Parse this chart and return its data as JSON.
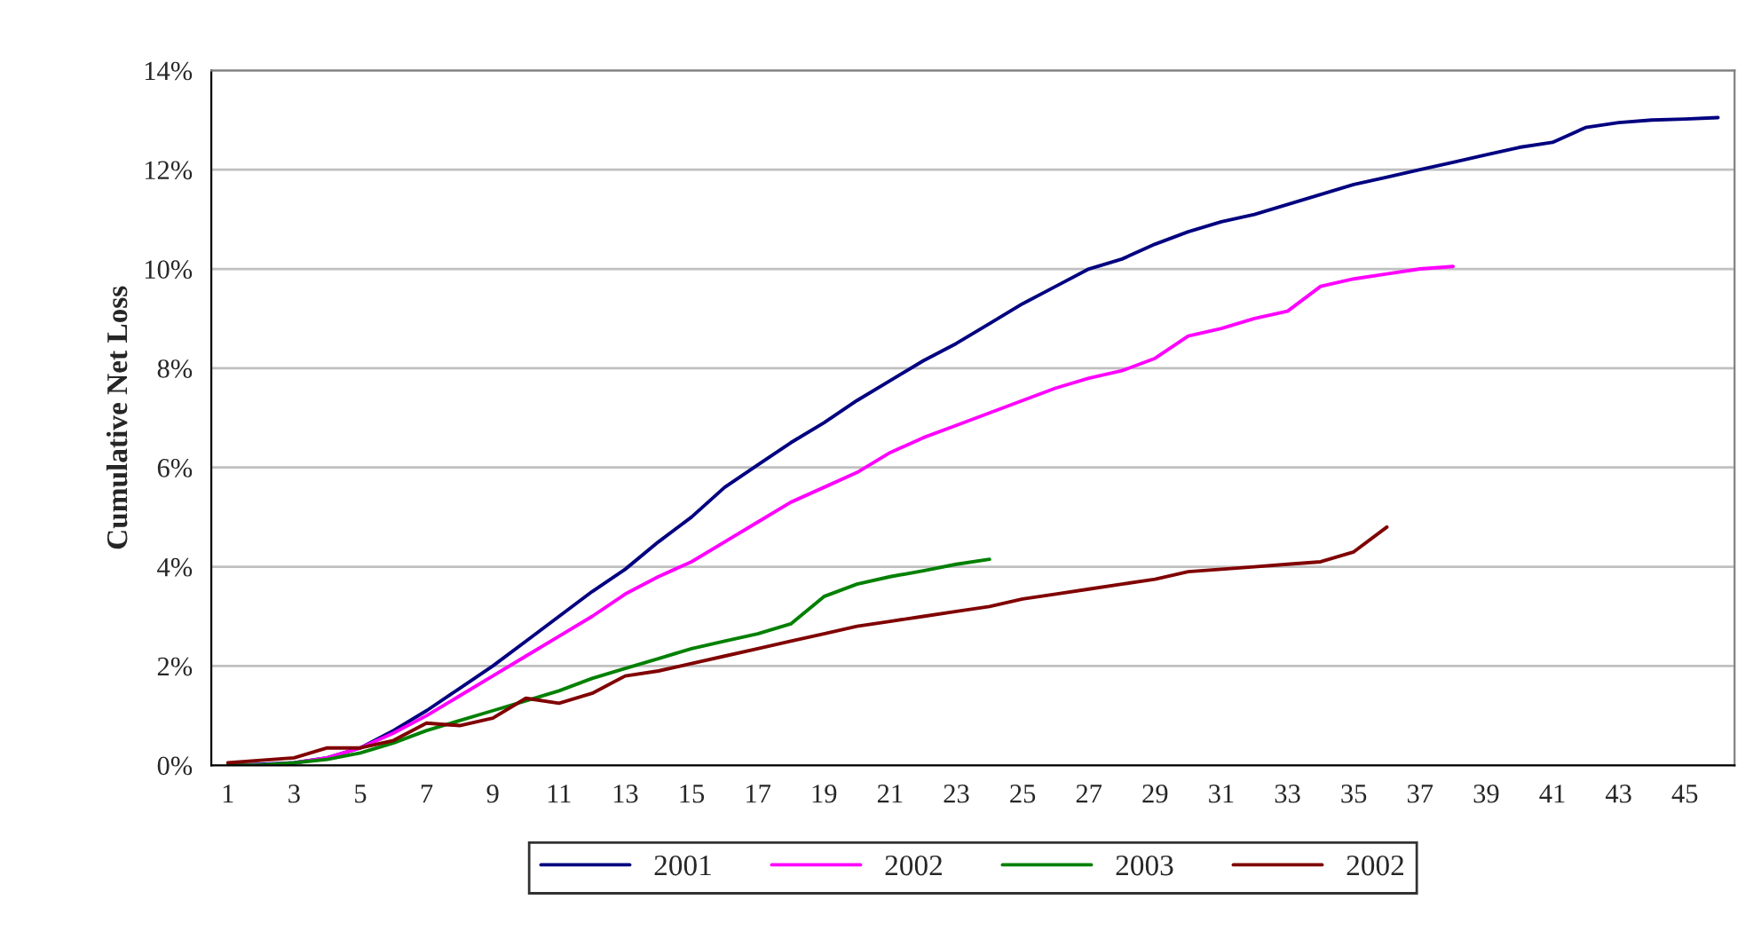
{
  "chart_data": {
    "type": "line",
    "ylabel": "Cumulative Net Loss",
    "x": [
      1,
      2,
      3,
      4,
      5,
      6,
      7,
      8,
      9,
      10,
      11,
      12,
      13,
      14,
      15,
      16,
      17,
      18,
      19,
      20,
      21,
      22,
      23,
      24,
      25,
      26,
      27,
      28,
      29,
      30,
      31,
      32,
      33,
      34,
      35,
      36,
      37,
      38,
      39,
      40,
      41,
      42,
      43,
      44,
      45,
      46
    ],
    "series": [
      {
        "name": "2001",
        "color": "#000080",
        "values": [
          0,
          0.02,
          0.05,
          0.15,
          0.35,
          0.7,
          1.1,
          1.55,
          2.0,
          2.5,
          3.0,
          3.5,
          3.95,
          4.5,
          5.0,
          5.6,
          6.05,
          6.5,
          6.9,
          7.35,
          7.75,
          8.15,
          8.5,
          8.9,
          9.3,
          9.65,
          10.0,
          10.2,
          10.5,
          10.75,
          10.95,
          11.1,
          11.3,
          11.5,
          11.7,
          11.85,
          12.0,
          12.15,
          12.3,
          12.45,
          12.55,
          12.85,
          12.95,
          13.0,
          13.02,
          13.05
        ]
      },
      {
        "name": "2002",
        "color": "#ff00ff",
        "values": [
          0,
          0,
          0.05,
          0.15,
          0.35,
          0.65,
          1.0,
          1.4,
          1.8,
          2.2,
          2.6,
          3.0,
          3.45,
          3.8,
          4.1,
          4.5,
          4.9,
          5.3,
          5.6,
          5.9,
          6.3,
          6.6,
          6.85,
          7.1,
          7.35,
          7.6,
          7.8,
          7.95,
          8.2,
          8.65,
          8.8,
          9.0,
          9.15,
          9.65,
          9.8,
          9.9,
          10.0,
          10.05,
          null,
          null,
          null,
          null,
          null,
          null,
          null,
          null
        ]
      },
      {
        "name": "2003",
        "color": "#008000",
        "values": [
          0,
          0,
          0.05,
          0.12,
          0.25,
          0.45,
          0.7,
          0.9,
          1.1,
          1.3,
          1.5,
          1.75,
          1.95,
          2.15,
          2.35,
          2.5,
          2.65,
          2.85,
          3.4,
          3.65,
          3.8,
          3.92,
          4.05,
          4.15,
          null,
          null,
          null,
          null,
          null,
          null,
          null,
          null,
          null,
          null,
          null,
          null,
          null,
          null,
          null,
          null,
          null,
          null,
          null,
          null,
          null,
          null
        ]
      },
      {
        "name": "2002",
        "color": "#800000",
        "values": [
          0.05,
          0.1,
          0.15,
          0.35,
          0.35,
          0.5,
          0.85,
          0.8,
          0.95,
          1.35,
          1.25,
          1.45,
          1.8,
          1.9,
          2.05,
          2.2,
          2.35,
          2.5,
          2.65,
          2.8,
          2.9,
          3.0,
          3.1,
          3.2,
          3.35,
          3.45,
          3.55,
          3.65,
          3.75,
          3.9,
          3.95,
          4.0,
          4.05,
          4.1,
          4.3,
          4.8,
          null,
          null,
          null,
          null,
          null,
          null,
          null,
          null,
          null,
          null
        ]
      }
    ],
    "xlim": [
      0.5,
      46.5
    ],
    "xticks": [
      1,
      3,
      5,
      7,
      9,
      11,
      13,
      15,
      17,
      19,
      21,
      23,
      25,
      27,
      29,
      31,
      33,
      35,
      37,
      39,
      41,
      43,
      45
    ],
    "ylim": [
      0,
      14
    ],
    "yticks": [
      {
        "value": 0,
        "label": "0%"
      },
      {
        "value": 2,
        "label": "2%"
      },
      {
        "value": 4,
        "label": "4%"
      },
      {
        "value": 6,
        "label": "6%"
      },
      {
        "value": 8,
        "label": "8%"
      },
      {
        "value": 10,
        "label": "10%"
      },
      {
        "value": 12,
        "label": "12%"
      },
      {
        "value": 14,
        "label": "14%"
      }
    ],
    "grid": "y",
    "legend": "bottom",
    "marker": "none",
    "line_style": "solid"
  }
}
